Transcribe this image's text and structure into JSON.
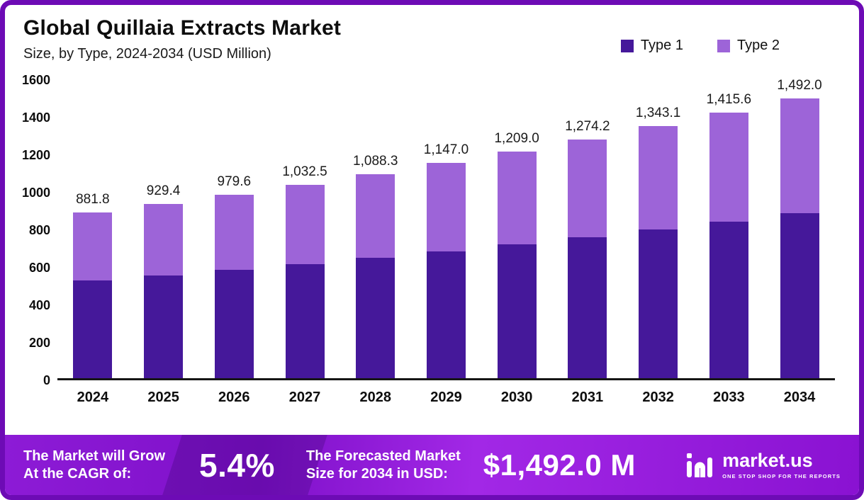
{
  "header": {
    "title": "Global Quillaia Extracts Market",
    "subtitle": "Size, by Type, 2024-2034 (USD Million)"
  },
  "chart_data": {
    "type": "bar",
    "stacked": true,
    "title": "Global Quillaia Extracts Market",
    "subtitle": "Size, by Type, 2024-2034 (USD Million)",
    "xlabel": "",
    "ylabel": "USD Million",
    "ylim": [
      0,
      1600
    ],
    "yticks": [
      0,
      200,
      400,
      600,
      800,
      1000,
      1200,
      1400,
      1600
    ],
    "grid": false,
    "legend_position": "top-right",
    "categories": [
      "2024",
      "2025",
      "2026",
      "2027",
      "2028",
      "2029",
      "2030",
      "2031",
      "2032",
      "2033",
      "2034"
    ],
    "series": [
      {
        "name": "Type 1",
        "color": "#45189a",
        "values": [
          520.3,
          548.3,
          577.9,
          609.2,
          642.1,
          676.7,
          713.3,
          751.8,
          792.4,
          835.2,
          880.3
        ]
      },
      {
        "name": "Type 2",
        "color": "#9d64d8",
        "values": [
          361.5,
          381.1,
          401.7,
          423.3,
          446.2,
          470.3,
          495.7,
          522.4,
          550.7,
          580.4,
          611.7
        ]
      }
    ],
    "totals": [
      881.8,
      929.4,
      979.6,
      1032.5,
      1088.3,
      1147.0,
      1209.0,
      1274.2,
      1343.1,
      1415.6,
      1492.0
    ],
    "total_labels": [
      "881.8",
      "929.4",
      "979.6",
      "1,032.5",
      "1,088.3",
      "1,147.0",
      "1,209.0",
      "1,274.2",
      "1,343.1",
      "1,415.6",
      "1,492.0"
    ]
  },
  "colors": {
    "type1": "#45189a",
    "type2": "#9d64d8",
    "frame_border": "#6d0bb5",
    "banner_purple": "#8d1bd6"
  },
  "footer": {
    "cagr_label": "The Market will Grow\nAt the CAGR of:",
    "cagr_value": "5.4%",
    "forecast_label": "The Forecasted Market\nSize for 2034 in USD:",
    "forecast_value": "$1,492.0 M",
    "brand_name": "market.us",
    "brand_tagline": "ONE STOP SHOP FOR THE REPORTS"
  }
}
